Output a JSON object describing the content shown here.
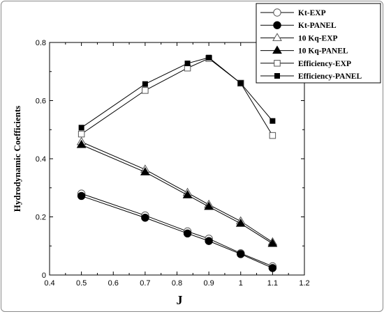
{
  "chart_data": {
    "type": "line",
    "title": "",
    "xlabel": "J",
    "ylabel": "Hydrodynamic Coefficients",
    "xlim": [
      0.4,
      1.2
    ],
    "ylim": [
      0,
      0.8
    ],
    "xticks": [
      "0.4",
      "0.5",
      "0.6",
      "0.7",
      "0.8",
      "0.9",
      "1",
      "1.1",
      "1.2"
    ],
    "yticks": [
      "0",
      "0.2",
      "0.4",
      "0.6",
      "0.8"
    ],
    "grid": false,
    "legend_position": "top-right",
    "series": [
      {
        "name": "Kt-EXP",
        "marker": "circle-open",
        "x": [
          0.5,
          0.7,
          0.833,
          0.9,
          1.0,
          1.1
        ],
        "y": [
          0.28,
          0.205,
          0.15,
          0.125,
          0.075,
          0.03
        ]
      },
      {
        "name": "Kt-PANEL",
        "marker": "circle-filled",
        "x": [
          0.5,
          0.7,
          0.833,
          0.9,
          1.0,
          1.1
        ],
        "y": [
          0.272,
          0.197,
          0.143,
          0.117,
          0.072,
          0.024
        ]
      },
      {
        "name": "10 Kq-EXP",
        "marker": "triangle-open",
        "x": [
          0.5,
          0.7,
          0.833,
          0.9,
          1.0,
          1.1
        ],
        "y": [
          0.458,
          0.363,
          0.283,
          0.242,
          0.185,
          0.113
        ]
      },
      {
        "name": "10 Kq-PANEL",
        "marker": "triangle-filled",
        "x": [
          0.5,
          0.7,
          0.833,
          0.9,
          1.0,
          1.1
        ],
        "y": [
          0.448,
          0.354,
          0.275,
          0.235,
          0.177,
          0.108
        ]
      },
      {
        "name": "Efficiency-EXP",
        "marker": "square-open",
        "x": [
          0.5,
          0.7,
          0.833,
          0.9,
          1.0,
          1.1
        ],
        "y": [
          0.485,
          0.635,
          0.712,
          0.745,
          0.66,
          0.48
        ]
      },
      {
        "name": "Efficiency-PANEL",
        "marker": "square-filled",
        "x": [
          0.5,
          0.7,
          0.833,
          0.9,
          1.0,
          1.1
        ],
        "y": [
          0.507,
          0.657,
          0.728,
          0.748,
          0.66,
          0.53
        ]
      }
    ]
  }
}
